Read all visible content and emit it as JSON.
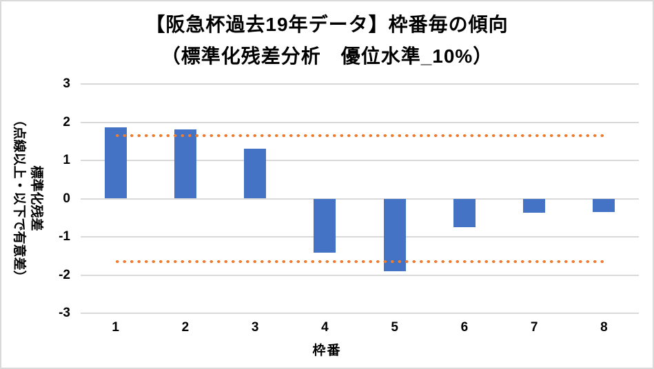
{
  "chart_data": {
    "type": "bar",
    "title_line1": "【阪急杯過去19年データ】枠番毎の傾向",
    "title_line2": "（標準化残差分析　優位水準_10%）",
    "xlabel": "枠番",
    "ylabel_line1": "標準化残差",
    "ylabel_line2": "（点線以上・以下で有意差）",
    "categories": [
      "1",
      "2",
      "3",
      "4",
      "5",
      "6",
      "7",
      "8"
    ],
    "values": [
      1.87,
      1.81,
      1.3,
      -1.41,
      -1.9,
      -0.75,
      -0.37,
      -0.36
    ],
    "series_name": "標準化残差",
    "ylim": [
      -3,
      3
    ],
    "yticks": [
      3,
      2,
      1,
      0,
      -1,
      -2,
      -3
    ],
    "ytick_labels": [
      "3",
      "2",
      "1",
      "0",
      "-1",
      "-2",
      "-3"
    ],
    "threshold_upper": 1.645,
    "threshold_lower": -1.645,
    "grid": true,
    "legend": "none",
    "colors": {
      "bar": "#4472C4",
      "threshold_dots": "#ED7D31",
      "gridline": "#D9D9D9",
      "text": "#000000",
      "background": "#FFFFFF",
      "border": "#D9D9D9"
    }
  }
}
